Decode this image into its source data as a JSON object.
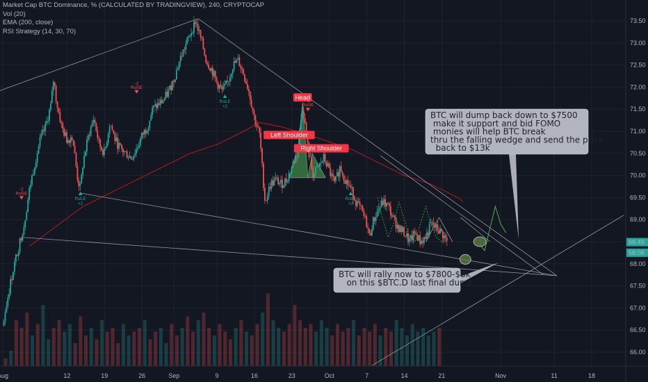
{
  "header": {
    "title": "Market Cap BTC Dominance, % (CALCULATED BY TRADINGVIEW), 240, CRYPTOCAP",
    "indicators": [
      "Vol (20)",
      "EMA (200, close)",
      "RSI Strategy (14, 30, 70)"
    ]
  },
  "chart_data": {
    "type": "line",
    "title": "Market Cap BTC Dominance, % (CALCULATED BY TRADINGVIEW), 240, CRYPTOCAP",
    "interval": "240",
    "xlabel": "",
    "ylabel": "",
    "ylim": [
      65.7,
      73.7
    ],
    "y_ticks": [
      "73.50",
      "73.00",
      "72.50",
      "72.00",
      "71.50",
      "71.00",
      "70.50",
      "70.00",
      "69.50",
      "69.00",
      "68.50",
      "68.00",
      "67.50",
      "67.00",
      "66.50",
      "66.00"
    ],
    "x_ticks": [
      {
        "day": 0,
        "label": "Aug"
      },
      {
        "day": 12,
        "label": "12"
      },
      {
        "day": 19,
        "label": "19"
      },
      {
        "day": 26,
        "label": "26"
      },
      {
        "day": 32,
        "label": "Sep"
      },
      {
        "day": 40,
        "label": "9"
      },
      {
        "day": 47,
        "label": "16"
      },
      {
        "day": 54,
        "label": "23"
      },
      {
        "day": 61,
        "label": "Oct"
      },
      {
        "day": 68,
        "label": "7"
      },
      {
        "day": 75,
        "label": "14"
      },
      {
        "day": 82,
        "label": "21"
      },
      {
        "day": 93,
        "label": "Nov"
      },
      {
        "day": 103,
        "label": "11"
      },
      {
        "day": 110,
        "label": "18"
      }
    ],
    "price_series": {
      "name": "BTC Dominance",
      "points": [
        [
          0,
          66.6
        ],
        [
          1,
          67.3
        ],
        [
          2,
          67.9
        ],
        [
          3,
          68.4
        ],
        [
          4,
          68.9
        ],
        [
          5,
          69.7
        ],
        [
          6,
          70.3
        ],
        [
          7,
          70.8
        ],
        [
          8,
          71.1
        ],
        [
          9,
          71.6
        ],
        [
          9.5,
          72.2
        ],
        [
          10,
          71.7
        ],
        [
          11,
          71.1
        ],
        [
          12,
          70.8
        ],
        [
          13,
          70.9
        ],
        [
          14,
          69.9
        ],
        [
          14.5,
          69.7
        ],
        [
          15,
          70.3
        ],
        [
          16,
          70.9
        ],
        [
          17,
          71.3
        ],
        [
          18,
          70.7
        ],
        [
          19,
          70.5
        ],
        [
          20,
          71.2
        ],
        [
          21,
          70.8
        ],
        [
          22,
          70.6
        ],
        [
          23,
          70.5
        ],
        [
          24,
          70.4
        ],
        [
          25,
          70.6
        ],
        [
          26,
          70.9
        ],
        [
          27,
          71.1
        ],
        [
          28,
          71.5
        ],
        [
          29,
          71.6
        ],
        [
          30,
          71.7
        ],
        [
          31,
          71.9
        ],
        [
          32,
          72.2
        ],
        [
          33,
          72.6
        ],
        [
          34,
          72.9
        ],
        [
          35,
          73.2
        ],
        [
          36,
          73.5
        ],
        [
          37,
          73.1
        ],
        [
          38,
          72.6
        ],
        [
          39,
          72.4
        ],
        [
          40,
          72.1
        ],
        [
          41,
          71.9
        ],
        [
          42,
          72.1
        ],
        [
          43,
          72.5
        ],
        [
          44,
          72.6
        ],
        [
          45,
          72.3
        ],
        [
          46,
          71.9
        ],
        [
          47,
          71.3
        ],
        [
          48,
          70.9
        ],
        [
          48.5,
          70.1
        ],
        [
          49,
          69.4
        ],
        [
          50,
          69.8
        ],
        [
          51,
          69.9
        ],
        [
          52,
          69.8
        ],
        [
          53,
          69.9
        ],
        [
          54,
          70.2
        ],
        [
          55,
          70.5
        ],
        [
          56,
          71.6
        ],
        [
          57,
          70.6
        ],
        [
          58,
          70.0
        ],
        [
          59,
          70.2
        ],
        [
          60,
          70.4
        ],
        [
          61,
          70.1
        ],
        [
          62,
          69.8
        ],
        [
          63,
          70.2
        ],
        [
          64,
          69.9
        ],
        [
          65,
          69.7
        ],
        [
          66,
          69.4
        ],
        [
          67,
          69.2
        ],
        [
          68,
          68.9
        ],
        [
          68.5,
          68.6
        ],
        [
          69,
          68.9
        ],
        [
          70,
          69.2
        ],
        [
          71,
          69.4
        ],
        [
          72,
          69.3
        ],
        [
          73,
          69.0
        ],
        [
          74,
          68.8
        ],
        [
          75,
          68.7
        ],
        [
          76,
          68.5
        ],
        [
          77,
          68.7
        ],
        [
          78,
          68.5
        ],
        [
          79,
          68.6
        ],
        [
          80,
          68.9
        ],
        [
          81,
          68.8
        ],
        [
          82,
          68.7
        ],
        [
          83,
          68.5
        ]
      ]
    },
    "ema_series": {
      "name": "EMA (200, close)",
      "points": [
        [
          5,
          68.4
        ],
        [
          15,
          69.3
        ],
        [
          25,
          69.9
        ],
        [
          35,
          70.5
        ],
        [
          40,
          70.7
        ],
        [
          45,
          71.0
        ],
        [
          48,
          71.2
        ],
        [
          52,
          71.1
        ],
        [
          55,
          71.0
        ],
        [
          60,
          70.8
        ],
        [
          65,
          70.6
        ],
        [
          70,
          70.3
        ],
        [
          75,
          70.0
        ],
        [
          80,
          69.8
        ],
        [
          85,
          69.5
        ],
        [
          86,
          69.4
        ]
      ]
    },
    "volume_series": {
      "name": "Vol (20)",
      "values": [
        0.1,
        0.2,
        0.6,
        0.5,
        0.7,
        0.4,
        0.55,
        0.8,
        0.35,
        0.5,
        0.6,
        0.45,
        0.55,
        0.3,
        0.65,
        0.4,
        0.5,
        0.35,
        0.6,
        0.45,
        0.5,
        0.3,
        0.55,
        0.4,
        0.45,
        0.5,
        0.6,
        0.35,
        0.45,
        0.5,
        0.3,
        0.55,
        0.4,
        0.5,
        0.65,
        0.45,
        0.6,
        0.7,
        0.5,
        0.4,
        0.55,
        0.45,
        0.35,
        0.5,
        0.6,
        0.45,
        0.4,
        0.55,
        0.7,
        0.95,
        0.6,
        0.5,
        0.45,
        0.55,
        0.8,
        0.6,
        0.5,
        0.55,
        0.45,
        0.6,
        0.5,
        0.4,
        0.55,
        0.45,
        0.5,
        0.6,
        0.4,
        0.5,
        0.45,
        0.55,
        0.4,
        0.5,
        0.45,
        0.6,
        0.5,
        0.4,
        0.55,
        0.45,
        0.5,
        0.4,
        0.45,
        0.5
      ]
    },
    "price_labels": [
      {
        "y": 68.49,
        "label": "68.49",
        "color": "#26a69a"
      },
      {
        "y": 68.25,
        "label": "58:08",
        "color": "#26a69a"
      }
    ],
    "annotations": {
      "head": {
        "label": "Head",
        "day": 56,
        "y": 71.75
      },
      "left_shoulder": {
        "label": "Left Shoulder",
        "day": 53.5,
        "y": 70.9
      },
      "right_shoulder": {
        "label": "Right Shoulder",
        "day": 59.5,
        "y": 70.6
      },
      "signals": [
        {
          "label": "RsiSE",
          "count": "-2",
          "day": 3.5,
          "y": 69.5,
          "dir": "short"
        },
        {
          "label": "RsiSE",
          "count": "-2",
          "day": 25,
          "y": 71.9,
          "dir": "short"
        },
        {
          "label": "RsiSE",
          "count": "-2",
          "day": 57,
          "y": 71.5,
          "dir": "short"
        },
        {
          "label": "RsiLE",
          "count": "+2",
          "day": 14.5,
          "y": 69.6,
          "dir": "long"
        },
        {
          "label": "RsiLE",
          "count": "+2",
          "day": 41.5,
          "y": 71.8,
          "dir": "long"
        },
        {
          "label": "RsiLE",
          "count": "+2",
          "day": 65,
          "y": 69.6,
          "dir": "long"
        }
      ],
      "notes": [
        {
          "lines": [
            "BTC will dump back down to $7500",
            " make it support and bid FOMO",
            " monies will help BTC break",
            "thru the falling wedge and send the price",
            "  back to $13k"
          ]
        },
        {
          "lines": [
            "BTC will rally now to $7800-$8k",
            "   on this $BTC.D last final dump"
          ]
        }
      ]
    },
    "grid": true
  },
  "colors": {
    "background": "#131722",
    "grid": "#1f2330",
    "up": "#26a69a",
    "down": "#ef5350",
    "ema": "#b71c1c",
    "trendline": "#9598a1",
    "note_bg": "#b2b5be",
    "hs_fill": "#4caf50",
    "forecast": "#4caf50"
  }
}
